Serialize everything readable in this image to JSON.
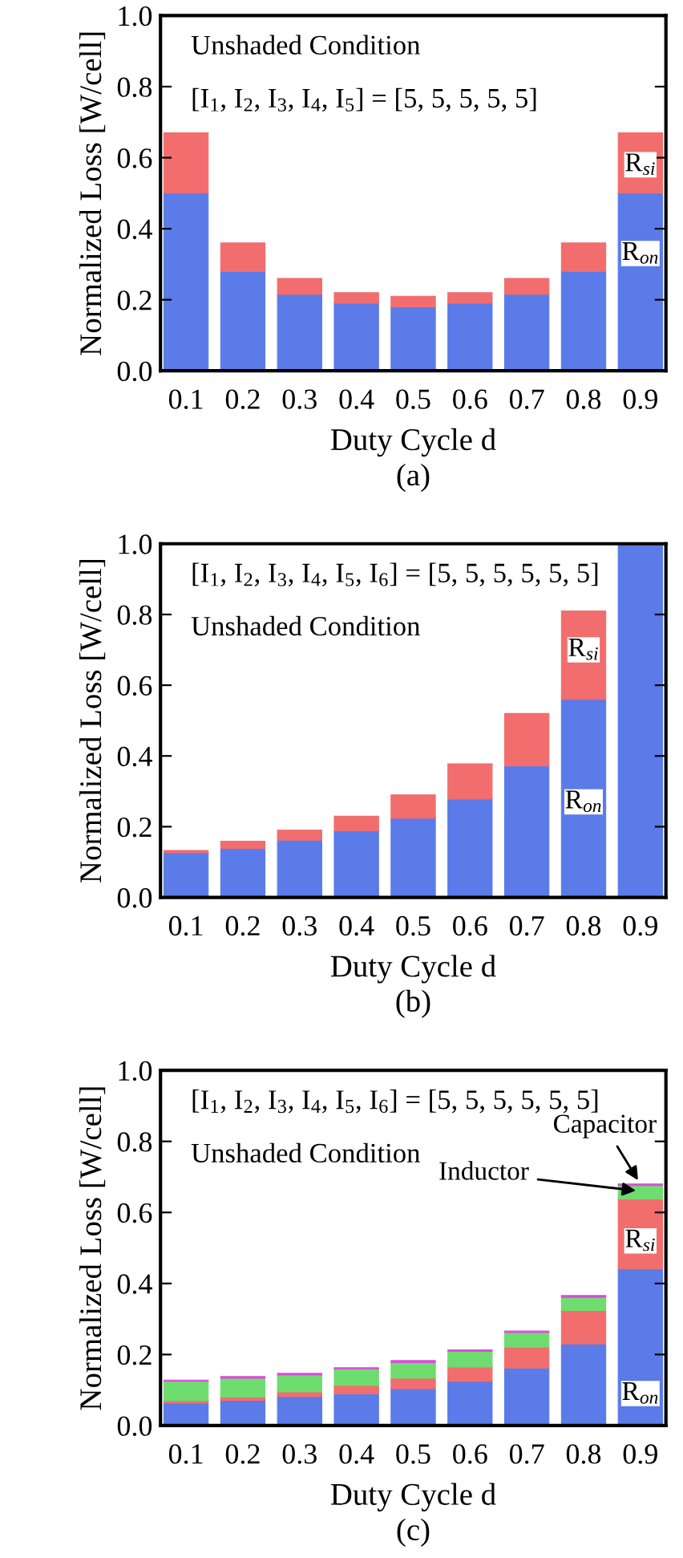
{
  "chart_data": [
    {
      "type": "bar",
      "stacked": true,
      "title": "(a)",
      "xlabel": "Duty Cycle d",
      "ylabel": "Normalized Loss [W/cell]",
      "categories": [
        "0.1",
        "0.2",
        "0.3",
        "0.4",
        "0.5",
        "0.6",
        "0.7",
        "0.8",
        "0.9"
      ],
      "series": [
        {
          "color": "#5b7be8",
          "values": [
            0.5,
            0.28,
            0.215,
            0.19,
            0.18,
            0.19,
            0.215,
            0.28,
            0.5
          ]
        },
        {
          "color": "#f26d6d",
          "values": [
            0.17,
            0.08,
            0.045,
            0.03,
            0.03,
            0.03,
            0.045,
            0.08,
            0.17
          ]
        }
      ],
      "ylim": [
        0,
        1.0
      ],
      "yticks": [
        {
          "value": 0,
          "label": "0.0"
        },
        {
          "value": 0.2,
          "label": "0.2"
        },
        {
          "value": 0.4,
          "label": "0.4"
        },
        {
          "value": 0.6,
          "label": "0.6"
        },
        {
          "value": 0.8,
          "label": "0.8"
        },
        {
          "value": 1.0,
          "label": "1.0"
        }
      ],
      "annotations": [
        "Unshaded Condition",
        "[I$_{1}$, I$_{2}$, I$_{3}$, I$_{4}$, I$_{5}$] = [5, 5, 5, 5, 5]",
        {
          "text": "R$_{si}$",
          "x": "0.9",
          "y": 0.58
        },
        {
          "text": "R$_{on}$",
          "x": "0.9",
          "y": 0.33
        }
      ]
    },
    {
      "type": "bar",
      "stacked": true,
      "title": "(b)",
      "xlabel": "Duty Cycle d",
      "ylabel": "Normalized Loss [W/cell]",
      "categories": [
        "0.1",
        "0.2",
        "0.3",
        "0.4",
        "0.5",
        "0.6",
        "0.7",
        "0.8",
        "0.9"
      ],
      "series": [
        {
          "color": "#5b7be8",
          "values": [
            0.126,
            0.138,
            0.162,
            0.188,
            0.224,
            0.278,
            0.372,
            0.56,
            1.0
          ]
        },
        {
          "color": "#f26d6d",
          "values": [
            0.007,
            0.021,
            0.028,
            0.042,
            0.066,
            0.1,
            0.148,
            0.25,
            null
          ]
        }
      ],
      "ylim": [
        0,
        1.0
      ],
      "yticks": [
        {
          "value": 0,
          "label": "0.0"
        },
        {
          "value": 0.2,
          "label": "0.2"
        },
        {
          "value": 0.4,
          "label": "0.4"
        },
        {
          "value": 0.6,
          "label": "0.6"
        },
        {
          "value": 0.8,
          "label": "0.8"
        },
        {
          "value": 1.0,
          "label": "1.0"
        }
      ],
      "annotations": [
        "[I$_{1}$, I$_{2}$, I$_{3}$, I$_{4}$, I$_{5}$, I$_{6}$] = [5, 5, 5, 5, 5, 5]",
        "Unshaded Condition",
        {
          "text": "R$_{si}$",
          "x": "0.8",
          "y": 0.7
        },
        {
          "text": "R$_{on}$",
          "x": "0.8",
          "y": 0.27
        }
      ]
    },
    {
      "type": "bar",
      "stacked": true,
      "title": "(c)",
      "xlabel": "Duty Cycle d",
      "ylabel": "Normalized Loss [W/cell]",
      "categories": [
        "0.1",
        "0.2",
        "0.3",
        "0.4",
        "0.5",
        "0.6",
        "0.7",
        "0.8",
        "0.9"
      ],
      "series": [
        {
          "color": "#5b7be8",
          "values": [
            0.063,
            0.071,
            0.082,
            0.089,
            0.104,
            0.125,
            0.162,
            0.23,
            0.441
          ]
        },
        {
          "color": "#f26d6d",
          "values": [
            0.007,
            0.009,
            0.013,
            0.024,
            0.029,
            0.04,
            0.059,
            0.094,
            0.197
          ]
        },
        {
          "color": "#6fdc6f",
          "values": [
            0.055,
            0.053,
            0.047,
            0.046,
            0.044,
            0.044,
            0.041,
            0.037,
            0.038
          ]
        },
        {
          "color": "#d94fd9",
          "values": [
            0.003,
            0.005,
            0.005,
            0.004,
            0.006,
            0.004,
            0.004,
            0.005,
            0.004
          ]
        }
      ],
      "ylim": [
        0,
        1.0
      ],
      "yticks": [
        {
          "value": 0,
          "label": "0.0"
        },
        {
          "value": 0.2,
          "label": "0.2"
        },
        {
          "value": 0.4,
          "label": "0.4"
        },
        {
          "value": 0.6,
          "label": "0.6"
        },
        {
          "value": 0.8,
          "label": "0.8"
        },
        {
          "value": 1.0,
          "label": "1.0"
        }
      ],
      "annotations": [
        "[I$_{1}$, I$_{2}$, I$_{3}$, I$_{4}$, I$_{5}$, I$_{6}$] = [5, 5, 5, 5, 5, 5]",
        "Unshaded Condition",
        {
          "text": "R$_{si}$",
          "x": "0.9",
          "y": 0.52
        },
        {
          "text": "R$_{on}$",
          "x": "0.9",
          "y": 0.09
        },
        {
          "text": "Inductor",
          "x": "0.9",
          "y": 0.66
        },
        {
          "text": "Capacitor",
          "x": "0.9",
          "y": 0.68
        }
      ]
    }
  ]
}
